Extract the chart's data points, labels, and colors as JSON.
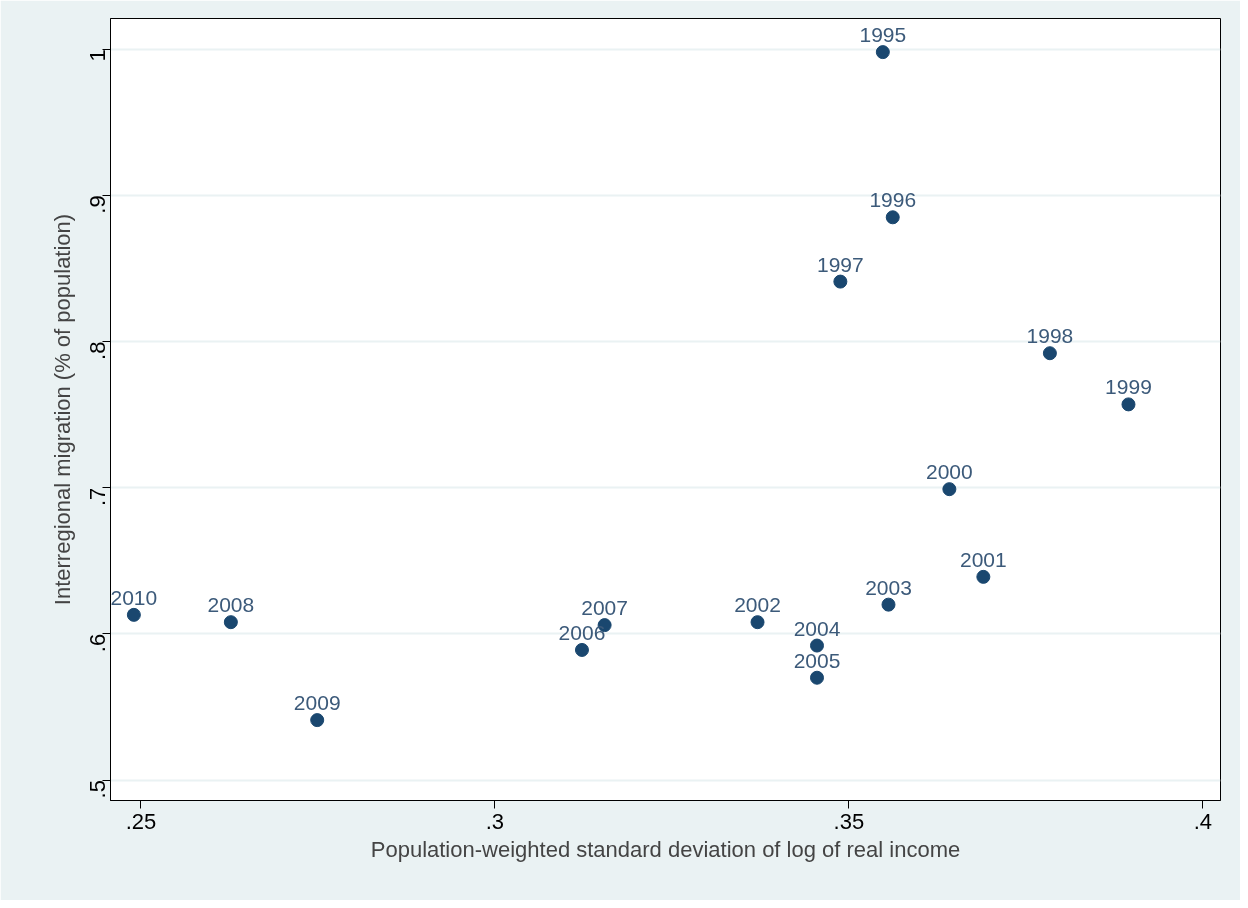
{
  "chart_data": {
    "type": "scatter",
    "xlabel": "Population-weighted standard deviation of log of real income",
    "ylabel": "Interregional migration (% of population)",
    "x": [
      0.3548,
      0.3562,
      0.3488,
      0.3784,
      0.3895,
      0.3642,
      0.369,
      0.3371,
      0.3556,
      0.3455,
      0.3455,
      0.3123,
      0.3155,
      0.2627,
      0.2749,
      0.249
    ],
    "values": [
      0.998,
      0.885,
      0.841,
      0.792,
      0.757,
      0.699,
      0.639,
      0.608,
      0.62,
      0.592,
      0.57,
      0.589,
      0.606,
      0.608,
      0.541,
      0.613
    ],
    "color": "#1a476f",
    "marker": "circle",
    "grid": "y",
    "xlim": [
      0.2457,
      0.4025
    ],
    "ylim": [
      0.486,
      1.021
    ],
    "xticks": [
      {
        "value": 0.25,
        "label": ".25"
      },
      {
        "value": 0.3,
        "label": ".3"
      },
      {
        "value": 0.35,
        "label": ".35"
      },
      {
        "value": 0.4,
        "label": ".4"
      }
    ],
    "yticks": [
      {
        "value": 0.5,
        "label": ".5"
      },
      {
        "value": 0.6,
        "label": ".6"
      },
      {
        "value": 0.7,
        "label": ".7"
      },
      {
        "value": 0.8,
        "label": ".8"
      },
      {
        "value": 0.9,
        "label": ".9"
      },
      {
        "value": 1,
        "label": "1"
      }
    ],
    "annotations": [
      {
        "text": "1995",
        "x": 0.3548,
        "y": 0.998
      },
      {
        "text": "1996",
        "x": 0.3562,
        "y": 0.885
      },
      {
        "text": "1997",
        "x": 0.3488,
        "y": 0.841
      },
      {
        "text": "1998",
        "x": 0.3784,
        "y": 0.792
      },
      {
        "text": "1999",
        "x": 0.3895,
        "y": 0.757
      },
      {
        "text": "2000",
        "x": 0.3642,
        "y": 0.699
      },
      {
        "text": "2001",
        "x": 0.369,
        "y": 0.639
      },
      {
        "text": "2002",
        "x": 0.3371,
        "y": 0.608
      },
      {
        "text": "2003",
        "x": 0.3556,
        "y": 0.62
      },
      {
        "text": "2004",
        "x": 0.3455,
        "y": 0.592
      },
      {
        "text": "2005",
        "x": 0.3455,
        "y": 0.57
      },
      {
        "text": "2006",
        "x": 0.3123,
        "y": 0.589
      },
      {
        "text": "2007",
        "x": 0.3155,
        "y": 0.606
      },
      {
        "text": "2008",
        "x": 0.2627,
        "y": 0.608
      },
      {
        "text": "2009",
        "x": 0.2749,
        "y": 0.541
      },
      {
        "text": "2010",
        "x": 0.249,
        "y": 0.613
      }
    ]
  }
}
